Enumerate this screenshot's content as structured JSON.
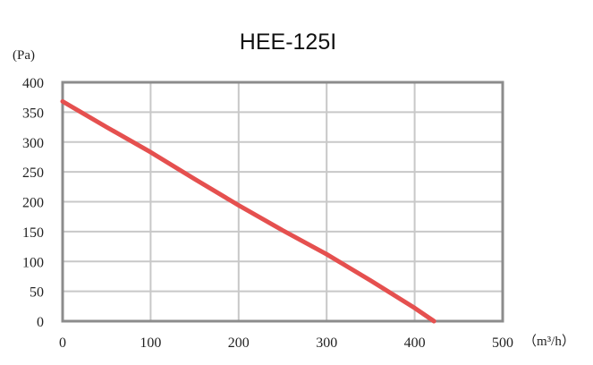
{
  "chart_data": {
    "type": "line",
    "title": "HEE-125I",
    "xlabel": "（m³/h）",
    "ylabel": "(Pa)",
    "xlim": [
      0,
      500
    ],
    "ylim": [
      0,
      400
    ],
    "xticks": [
      0,
      100,
      200,
      300,
      400,
      500
    ],
    "yticks": [
      0,
      50,
      100,
      150,
      200,
      250,
      300,
      350,
      400
    ],
    "xtick_labels": [
      "0",
      "100",
      "200",
      "300",
      "400",
      "500"
    ],
    "ytick_labels": [
      "0",
      "50",
      "100",
      "150",
      "200",
      "250",
      "300",
      "350",
      "400"
    ],
    "grid": true,
    "colors": {
      "line": "#e5504f",
      "grid": "#c8c8c8",
      "frame": "#8c8c8c"
    },
    "series": [
      {
        "x": [
          0,
          50,
          100,
          150,
          200,
          250,
          300,
          350,
          400,
          422
        ],
        "values": [
          368,
          325,
          283,
          238,
          194,
          152,
          112,
          68,
          22,
          0
        ]
      }
    ]
  }
}
